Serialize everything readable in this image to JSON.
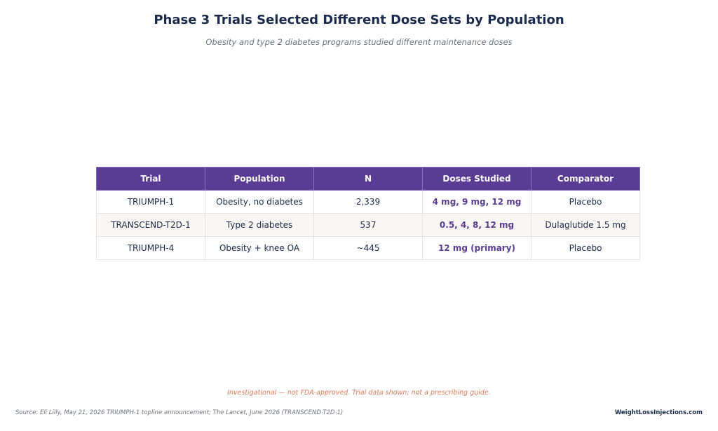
{
  "chart_data": {
    "type": "table",
    "title": "Phase 3 Trials Selected Different Dose Sets by Population",
    "subtitle": "Obesity and type 2 diabetes programs studied different maintenance doses",
    "columns": [
      "Trial",
      "Population",
      "N",
      "Doses Studied",
      "Comparator"
    ],
    "rows": [
      [
        "TRIUMPH-1",
        "Obesity, no diabetes",
        "2,339",
        "4 mg, 9 mg, 12 mg",
        "Placebo"
      ],
      [
        "TRANSCEND-T2D-1",
        "Type 2 diabetes",
        "537",
        "0.5, 4, 8, 12 mg",
        "Dulaglutide 1.5 mg"
      ],
      [
        "TRIUMPH-4",
        "Obesity + knee OA",
        "~445",
        "12 mg (primary)",
        "Placebo"
      ]
    ]
  },
  "footer": {
    "disclaimer": "Investigational — not FDA-approved. Trial data shown; not a prescribing guide.",
    "source": "Source: Eli Lilly, May 21, 2026 TRIUMPH-1 topline announcement; The Lancet, June 2026 (TRANSCEND-T2D-1)",
    "brand": "WeightLossInjections.com"
  },
  "colors": {
    "header_bg": "#5b3c94",
    "dose_text": "#5b3c94",
    "title_text": "#1a2a4a",
    "disclaimer_text": "#e07b5a",
    "alt_row_bg": "#faf7f4"
  }
}
